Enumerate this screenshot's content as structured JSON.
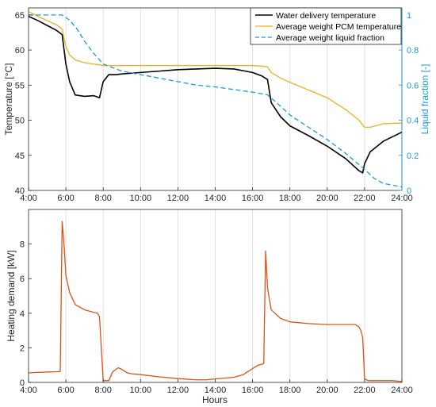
{
  "chart_data": [
    {
      "type": "line",
      "xlabel": "",
      "ylabel": "Temperature [°C]",
      "y2label": "Liquid fraction [-]",
      "xlim": [
        4,
        24
      ],
      "ylim": [
        40,
        66
      ],
      "y2lim": [
        0,
        1.04
      ],
      "grid": "vertical",
      "legend_position": "top-right",
      "x_ticks": [
        "4:00",
        "6:00",
        "8:00",
        "10:00",
        "12:00",
        "14:00",
        "16:00",
        "18:00",
        "20:00",
        "22:00",
        "24:00"
      ],
      "y_ticks": [
        "40",
        "45",
        "50",
        "55",
        "60",
        "65"
      ],
      "y2_ticks": [
        "0",
        "0.2",
        "0.4",
        "0.6",
        "0.8",
        "1"
      ],
      "series": [
        {
          "name": "Water delivery temperature",
          "axis": "left",
          "color": "#000000",
          "style": "solid",
          "x": [
            4,
            4.5,
            5,
            5.5,
            5.8,
            6.0,
            6.2,
            6.5,
            7,
            7.5,
            7.8,
            8,
            8.3,
            8.7,
            9,
            10,
            11,
            12,
            13,
            14,
            15,
            16,
            16.5,
            16.8,
            17,
            17.5,
            18,
            19,
            20,
            21,
            21.7,
            21.9,
            22,
            22.3,
            23,
            24
          ],
          "y": [
            64.8,
            64.2,
            63.5,
            62.8,
            62.2,
            58,
            55.5,
            53.6,
            53.4,
            53.5,
            53.2,
            55.5,
            56.5,
            56.5,
            56.6,
            56.8,
            57.0,
            57.2,
            57.3,
            57.4,
            57.3,
            56.8,
            56.3,
            55.8,
            52.5,
            50.5,
            49.2,
            47.8,
            46.3,
            44.5,
            42.8,
            42.5,
            43.8,
            45.5,
            47,
            48.3
          ]
        },
        {
          "name": "Average weight PCM temperature",
          "axis": "left",
          "color": "#edb120",
          "style": "solid",
          "x": [
            4,
            4.5,
            5,
            5.5,
            5.8,
            6.0,
            6.2,
            6.5,
            7,
            7.5,
            8,
            9,
            10,
            11,
            12,
            13,
            14,
            15,
            16,
            16.5,
            16.8,
            17,
            17.5,
            18,
            19,
            20,
            21,
            21.7,
            22,
            22.3,
            23,
            24
          ],
          "y": [
            65.5,
            64.8,
            64.2,
            63.6,
            63.0,
            60.5,
            59.3,
            58.6,
            58.2,
            58.0,
            57.8,
            57.8,
            57.8,
            57.8,
            57.8,
            57.8,
            57.8,
            57.8,
            57.8,
            57.7,
            57.6,
            56.8,
            56.0,
            55.4,
            54.3,
            53.2,
            51.5,
            50.0,
            49.0,
            49.0,
            49.5,
            49.6
          ]
        },
        {
          "name": "Average weight liquid fraction",
          "axis": "right",
          "color": "#1a9ad9",
          "style": "dashed",
          "x": [
            4,
            5,
            5.8,
            6.2,
            6.6,
            7,
            7.5,
            8,
            9,
            10,
            11,
            12,
            13,
            14,
            15,
            16,
            16.8,
            17.5,
            18,
            19,
            20,
            21,
            22,
            22.5,
            23,
            24
          ],
          "y": [
            1.0,
            1.0,
            1.0,
            0.97,
            0.92,
            0.85,
            0.78,
            0.72,
            0.68,
            0.66,
            0.64,
            0.62,
            0.6,
            0.59,
            0.575,
            0.56,
            0.545,
            0.48,
            0.43,
            0.36,
            0.29,
            0.21,
            0.12,
            0.07,
            0.04,
            0.02
          ]
        }
      ]
    },
    {
      "type": "line",
      "xlabel": "Hours",
      "ylabel": "Heating demand [kW]",
      "xlim": [
        4,
        24
      ],
      "ylim": [
        0,
        10
      ],
      "grid": "vertical",
      "x_ticks": [
        "4:00",
        "6:00",
        "8:00",
        "10:00",
        "12:00",
        "14:00",
        "16:00",
        "18:00",
        "20:00",
        "22:00",
        "24:00"
      ],
      "y_ticks": [
        "0",
        "2",
        "4",
        "6",
        "8"
      ],
      "series": [
        {
          "color": "#d95319",
          "style": "solid",
          "x": [
            4,
            4.5,
            5,
            5.5,
            5.7,
            5.8,
            5.9,
            6.0,
            6.2,
            6.5,
            7,
            7.5,
            7.7,
            7.8,
            8.0,
            8.3,
            8.5,
            8.8,
            9.0,
            9.3,
            9.5,
            10,
            11,
            12,
            13,
            13.5,
            14,
            15,
            15.5,
            16,
            16.3,
            16.5,
            16.6,
            16.7,
            16.8,
            16.9,
            17,
            17.5,
            18,
            19,
            20,
            21,
            21.5,
            21.7,
            21.8,
            21.9,
            22.0,
            22.2,
            22.5,
            23,
            23.5,
            24
          ],
          "y": [
            0.55,
            0.58,
            0.6,
            0.62,
            0.63,
            9.3,
            8.0,
            6.2,
            5.2,
            4.5,
            4.2,
            4.05,
            4.0,
            3.8,
            0.1,
            0.1,
            0.6,
            0.85,
            0.75,
            0.55,
            0.5,
            0.45,
            0.32,
            0.22,
            0.15,
            0.15,
            0.2,
            0.3,
            0.45,
            0.8,
            1.0,
            1.05,
            1.1,
            7.6,
            5.5,
            4.8,
            4.2,
            3.7,
            3.5,
            3.4,
            3.35,
            3.35,
            3.35,
            3.2,
            3.0,
            2.6,
            0.2,
            0.1,
            0.1,
            0.1,
            0.1,
            0.05
          ]
        }
      ]
    }
  ]
}
